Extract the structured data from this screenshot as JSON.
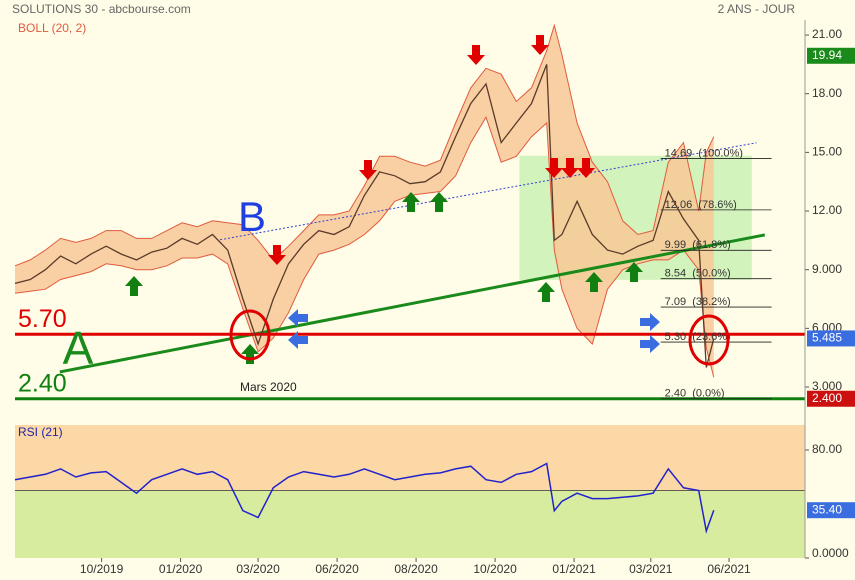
{
  "chart_data": [
    {
      "type": "line",
      "title": "SOLUTIONS 30 - abcbourse.com",
      "subtitle": "2 ANS - JOUR",
      "x": [
        0,
        2,
        4,
        6,
        8,
        10,
        12,
        14,
        16,
        18,
        20,
        22,
        24,
        26,
        28,
        30,
        32,
        34,
        36,
        38,
        40,
        42,
        44,
        46,
        48,
        50,
        52,
        54,
        56,
        58,
        60,
        62,
        64,
        66,
        68,
        70,
        71,
        72,
        74,
        76,
        78,
        80,
        82,
        84,
        86,
        88,
        90,
        91,
        92
      ],
      "values": [
        8.3,
        8.5,
        9.0,
        9.7,
        9.3,
        9.8,
        10.2,
        9.8,
        9.5,
        9.9,
        10.1,
        10.6,
        10.3,
        10.8,
        10.0,
        7.5,
        5.2,
        7.5,
        9.3,
        10.3,
        11.0,
        10.8,
        11.2,
        12.8,
        14.0,
        13.8,
        13.4,
        13.5,
        14.0,
        15.8,
        17.5,
        18.5,
        15.5,
        16.5,
        17.5,
        19.5,
        10.5,
        10.8,
        12.5,
        10.8,
        10.0,
        9.8,
        10.2,
        10.5,
        13.0,
        11.6,
        10.5,
        4.0,
        5.485
      ],
      "color": "#5a3a2a",
      "bands": {
        "name": "BOLL (20, 2)",
        "color": "#e05a40",
        "fill": "#f8c896",
        "upper": [
          9.2,
          9.5,
          10.0,
          10.6,
          10.4,
          10.6,
          11.0,
          11.0,
          10.6,
          10.6,
          11.0,
          11.4,
          11.2,
          11.5,
          11.4,
          11.3,
          10.5,
          9.5,
          10.2,
          11.0,
          11.8,
          11.8,
          12.0,
          13.3,
          14.8,
          14.8,
          14.5,
          14.3,
          14.6,
          16.5,
          18.3,
          19.3,
          19.0,
          17.6,
          18.3,
          20.2,
          21.5,
          20.0,
          16.5,
          14.5,
          13.5,
          11.5,
          10.8,
          11.0,
          14.5,
          15.5,
          12.0,
          15.0,
          15.8
        ],
        "lower": [
          7.8,
          7.9,
          8.0,
          8.5,
          8.7,
          8.9,
          9.3,
          9.2,
          9.0,
          9.0,
          9.2,
          9.6,
          9.6,
          9.8,
          9.3,
          7.0,
          4.8,
          5.5,
          6.8,
          8.5,
          9.8,
          10.0,
          10.3,
          10.8,
          11.5,
          12.5,
          12.8,
          12.9,
          13.0,
          13.8,
          15.5,
          16.8,
          14.5,
          14.8,
          15.8,
          16.5,
          10.0,
          8.0,
          6.0,
          5.2,
          8.0,
          9.0,
          9.3,
          9.5,
          9.5,
          10.0,
          9.0,
          5.0,
          3.5
        ]
      },
      "xlim": [
        0,
        104
      ],
      "ylim": [
        2.08,
        21.77
      ],
      "yticks": [
        {
          "value": 21,
          "label": "21.00"
        },
        {
          "value": 18,
          "label": "18.00"
        },
        {
          "value": 15,
          "label": "15.00"
        },
        {
          "value": 12,
          "label": "12.00"
        },
        {
          "value": 9,
          "label": "9.000"
        },
        {
          "value": 6,
          "label": "6.000"
        },
        {
          "value": 3,
          "label": "3.000"
        }
      ],
      "levels": [
        {
          "value": 5.7,
          "label": "5.70",
          "color": "#e00000"
        },
        {
          "value": 2.4,
          "label": "2.40",
          "color": "#108010"
        }
      ],
      "zone": {
        "x": [
          66.4,
          97
        ],
        "y": [
          8.48,
          14.83
        ],
        "color": "#c8f0b0"
      },
      "fibonacci": [
        {
          "value": 14.69,
          "label": "14.69  (100.0%)"
        },
        {
          "value": 12.06,
          "label": "12.06  (78.6%)"
        },
        {
          "value": 9.99,
          "label": "9.99  (61.8%)"
        },
        {
          "value": 8.54,
          "label": "8.54  (50.0%)"
        },
        {
          "value": 7.09,
          "label": "7.09  (38.2%)"
        },
        {
          "value": 5.3,
          "label": "5.30  (23.6%)"
        },
        {
          "value": 2.4,
          "label": "2.40  (0.0%)"
        }
      ],
      "trendlines": [
        {
          "points": [
            [
              5.9,
              3.77
            ],
            [
              98.7,
              10.78
            ]
          ],
          "color": "#1a8a1a"
        },
        {
          "points": [
            [
              27,
              10.53
            ],
            [
              97.6,
              15.49
            ]
          ],
          "color": "#3040d0"
        }
      ],
      "last_labels": [
        {
          "value": 19.94,
          "label": "19.94",
          "color": "#1a8a1a"
        },
        {
          "value": 5.485,
          "label": "5.485",
          "color": "#3a6ee0"
        },
        {
          "value": 2.4,
          "label": "2.400",
          "color": "#cc1010"
        }
      ],
      "annotations": [
        "B",
        "A",
        "Mars 2020"
      ]
    },
    {
      "type": "line",
      "title": "RSI (21)",
      "x": [
        0,
        2,
        4,
        6,
        8,
        10,
        12,
        14,
        16,
        18,
        20,
        22,
        24,
        26,
        28,
        30,
        32,
        34,
        36,
        38,
        40,
        42,
        44,
        46,
        48,
        50,
        52,
        54,
        56,
        58,
        60,
        62,
        64,
        66,
        68,
        70,
        71,
        72,
        74,
        76,
        78,
        80,
        82,
        84,
        86,
        88,
        90,
        91,
        92
      ],
      "values": [
        58,
        60,
        62,
        66,
        60,
        63,
        64,
        56,
        48,
        58,
        62,
        66,
        62,
        64,
        58,
        35,
        30,
        52,
        60,
        64,
        62,
        60,
        62,
        66,
        62,
        58,
        60,
        62,
        63,
        66,
        68,
        58,
        56,
        62,
        64,
        70,
        35,
        42,
        48,
        44,
        44,
        45,
        46,
        48,
        66,
        52,
        50,
        20,
        35.4
      ],
      "color": "#2222cc",
      "threshold": 50,
      "above_color": "#fbd8a6",
      "below_color": "#d8eca0",
      "xlim": [
        0,
        104
      ],
      "ylim": [
        0,
        98.5
      ],
      "xticks": [
        {
          "value": 11.4,
          "label": "10/2019"
        },
        {
          "value": 21.8,
          "label": "01/2020"
        },
        {
          "value": 32,
          "label": "03/2020"
        },
        {
          "value": 42.4,
          "label": "06/2020"
        },
        {
          "value": 52.8,
          "label": "08/2020"
        },
        {
          "value": 63.2,
          "label": "10/2020"
        },
        {
          "value": 73.6,
          "label": "01/2021"
        },
        {
          "value": 83.7,
          "label": "03/2021"
        },
        {
          "value": 94,
          "label": "06/2021"
        }
      ],
      "yticks": [
        {
          "value": 80,
          "label": "80.00"
        },
        {
          "value": 0,
          "label": "0.0000"
        }
      ],
      "last_label": {
        "value": 35.4,
        "label": "35.40",
        "color": "#3a6ee0"
      }
    }
  ]
}
